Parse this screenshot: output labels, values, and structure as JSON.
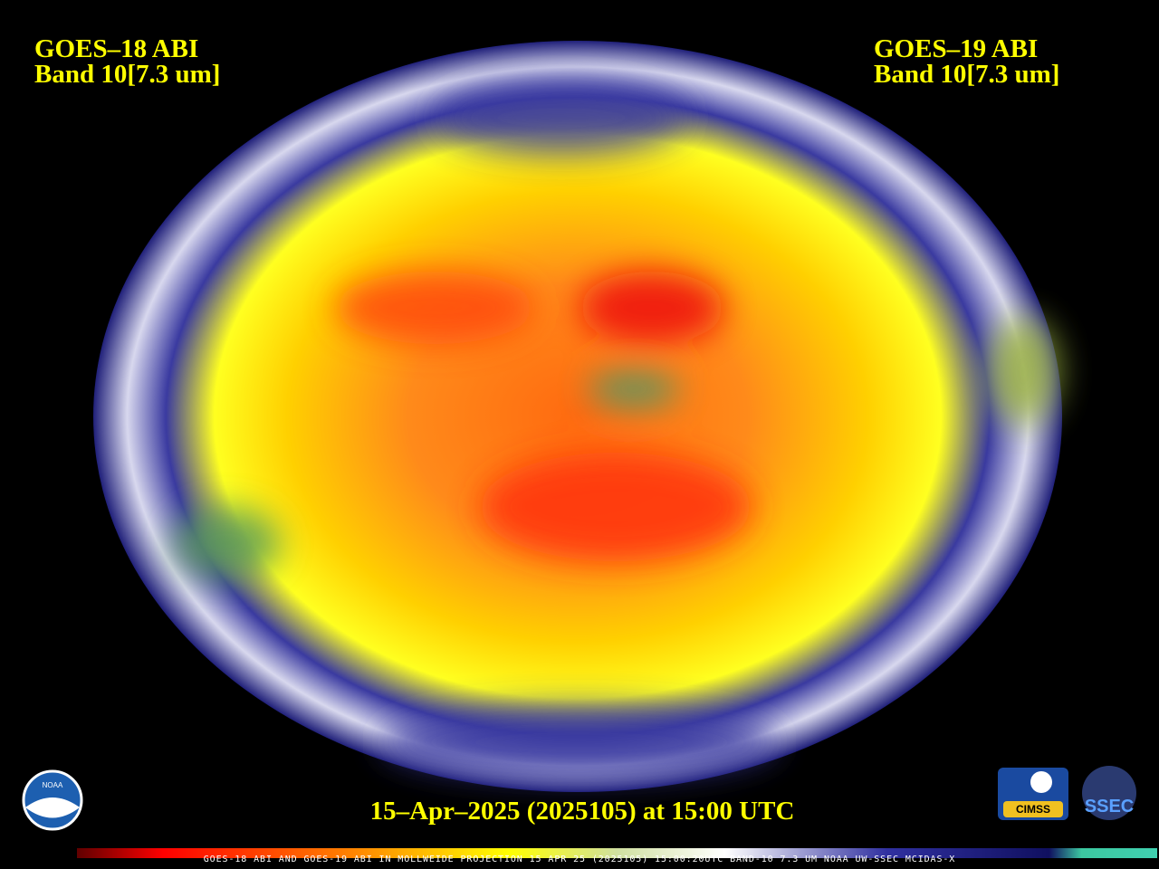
{
  "left_label": {
    "satellite": "GOES–18 ABI",
    "band": "Band 10[7.3 um]"
  },
  "right_label": {
    "satellite": "GOES–19 ABI",
    "band": "Band 10[7.3 um]"
  },
  "timestamp": "15–Apr–2025 (2025105) at 15:00 UTC",
  "colorbar": {
    "caption": "GOES-18 ABI AND GOES-19 ABI IN MOLLWEIDE PROJECTION 15 APR 25 (2025105) 15:00:20UTC BAND-10 7.3 UM NOAA UW-SSEC MCIDAS-X"
  },
  "logos": [
    "NOAA",
    "CIMSS",
    "SSEC"
  ]
}
